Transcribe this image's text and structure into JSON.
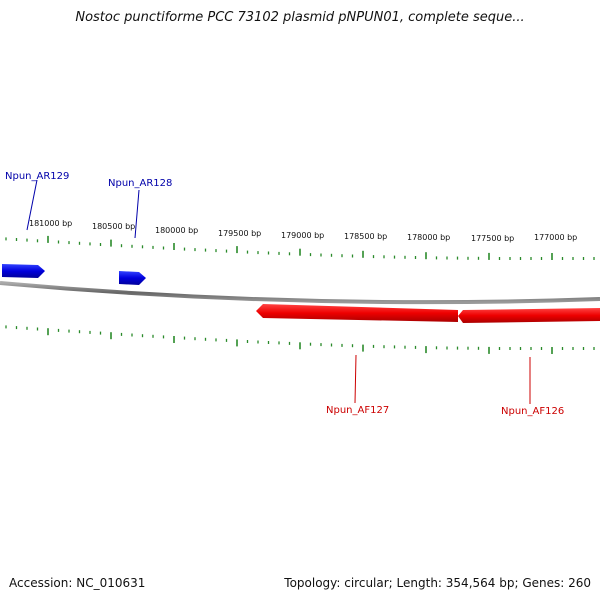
{
  "title": "Nostoc punctiforme PCC 73102 plasmid pNPUN01, complete seque...",
  "ruler_labels": [
    "181000 bp",
    "180500 bp",
    "180000 bp",
    "179500 bp",
    "179000 bp",
    "178500 bp",
    "178000 bp",
    "177500 bp",
    "177000 bp"
  ],
  "genes": [
    {
      "label": "Npun_AR129",
      "strand": "forward",
      "color": "#0000cc"
    },
    {
      "label": "Npun_AR128",
      "strand": "forward",
      "color": "#0000cc"
    },
    {
      "label": "Npun_AF127",
      "strand": "reverse",
      "color": "#ee0000"
    },
    {
      "label": "Npun_AF126",
      "strand": "reverse",
      "color": "#ee0000"
    }
  ],
  "colors": {
    "backbone": "#888888",
    "ticks": "#2a8a2a",
    "forward_label": "#0000aa",
    "reverse_label": "#cc0000"
  },
  "footer": {
    "accession": "Accession: NC_010631",
    "summary": "Topology: circular; Length: 354,564 bp; Genes: 260"
  }
}
